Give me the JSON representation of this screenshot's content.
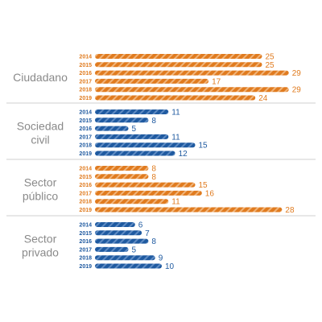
{
  "chart_data": {
    "type": "bar",
    "orientation": "horizontal",
    "grid": false,
    "legend": "none",
    "groups": [
      {
        "label_lines": [
          "Ciudadano"
        ],
        "color": "#e07b1f",
        "bars": [
          {
            "year": "2014",
            "value": 25
          },
          {
            "year": "2015",
            "value": 25
          },
          {
            "year": "2016",
            "value": 29
          },
          {
            "year": "2017",
            "value": 17
          },
          {
            "year": "2018",
            "value": 29
          },
          {
            "year": "2019",
            "value": 24
          }
        ]
      },
      {
        "label_lines": [
          "Sociedad",
          "civil"
        ],
        "color": "#1f5aa0",
        "bars": [
          {
            "year": "2014",
            "value": 11
          },
          {
            "year": "2015",
            "value": 8
          },
          {
            "year": "2016",
            "value": 5
          },
          {
            "year": "2017",
            "value": 11
          },
          {
            "year": "2018",
            "value": 15
          },
          {
            "year": "2019",
            "value": 12
          }
        ]
      },
      {
        "label_lines": [
          "Sector",
          "público"
        ],
        "color": "#e07b1f",
        "bars": [
          {
            "year": "2014",
            "value": 8
          },
          {
            "year": "2015",
            "value": 8
          },
          {
            "year": "2016",
            "value": 15
          },
          {
            "year": "2017",
            "value": 16
          },
          {
            "year": "2018",
            "value": 11
          },
          {
            "year": "2019",
            "value": 28
          }
        ]
      },
      {
        "label_lines": [
          "Sector",
          "privado"
        ],
        "color": "#1f5aa0",
        "bars": [
          {
            "year": "2014",
            "value": 6
          },
          {
            "year": "2015",
            "value": 7
          },
          {
            "year": "2016",
            "value": 8
          },
          {
            "year": "2017",
            "value": 5
          },
          {
            "year": "2018",
            "value": 9
          },
          {
            "year": "2019",
            "value": 10
          }
        ]
      }
    ]
  }
}
